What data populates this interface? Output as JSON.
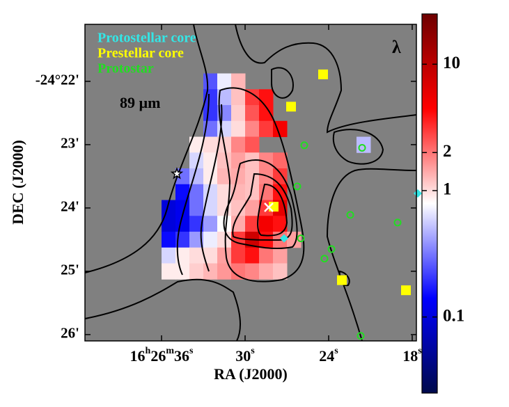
{
  "chart_data": {
    "type": "map",
    "band_label": "89 µm",
    "corner_label": "λ",
    "xlabel": "RA (J2000)",
    "ylabel": "DEC (J2000)",
    "xlim": [
      41.5,
      17.7
    ],
    "xticks": [
      36,
      30,
      24,
      18
    ],
    "xtick_prefix": [
      "16",
      "h",
      "26",
      "m"
    ],
    "xtick_suffix": "s",
    "ylim": [
      21.1,
      26.1
    ],
    "yticks": [
      {
        "value": 22,
        "label": "-24°22'"
      },
      {
        "value": 23,
        "label": "23'"
      },
      {
        "value": 24,
        "label": "24'"
      },
      {
        "value": 25,
        "label": "25'"
      },
      {
        "value": 26,
        "label": "26'"
      }
    ],
    "background": "#808080",
    "zlim": [
      0.025,
      25
    ],
    "zscale": "log",
    "zticks": [
      10,
      2,
      1,
      0.1
    ],
    "colormap": [
      "#000a4b",
      "#0000ff",
      "#ffffff",
      "#ff0000",
      "#6e0000"
    ],
    "map_rows": [
      {
        "dec": 22.0,
        "ra_from": 32.5,
        "values": [
          0.25,
          0.7,
          1.3
        ]
      },
      {
        "dec": 22.25,
        "ra_from": 32.5,
        "values": [
          0.2,
          0.5,
          1.2,
          3,
          4
        ]
      },
      {
        "dec": 22.5,
        "ra_from": 32.5,
        "values": [
          0.2,
          0.35,
          1.1,
          2.5,
          4
        ]
      },
      {
        "dec": 22.75,
        "ra_from": 32.5,
        "values": [
          0.3,
          0.6,
          1,
          1.8,
          3,
          5
        ]
      },
      {
        "dec": 23.0,
        "ra_from": 33.5,
        "values": [
          0.9,
          1.0,
          1.1,
          1.8,
          2.5
        ]
      },
      {
        "dec": 23.25,
        "ra_from": 33.5,
        "values": [
          0.6,
          0.9,
          1.2,
          1.5,
          1.2,
          1.8,
          2.2
        ]
      },
      {
        "dec": 23.5,
        "ra_from": 34.5,
        "values": [
          0.3,
          0.5,
          0.9,
          1.3,
          1.4,
          1.2,
          1.8,
          3
        ]
      },
      {
        "dec": 23.75,
        "ra_from": 34.5,
        "values": [
          0.15,
          0.3,
          0.6,
          1.0,
          1.3,
          1.2,
          2,
          4
        ]
      },
      {
        "dec": 24.0,
        "ra_from": 35.5,
        "values": [
          0.1,
          0.12,
          0.3,
          0.6,
          1.0,
          1.2,
          1.5,
          3,
          6
        ]
      },
      {
        "dec": 24.25,
        "ra_from": 35.5,
        "values": [
          0.1,
          0.12,
          0.2,
          0.4,
          0.8,
          1.4,
          3,
          5,
          4
        ]
      },
      {
        "dec": 24.5,
        "ra_from": 35.5,
        "values": [
          0.15,
          0.2,
          0.4,
          0.7,
          1.0,
          3,
          8,
          4,
          2,
          1.5
        ]
      },
      {
        "dec": 24.75,
        "ra_from": 35.5,
        "values": [
          0.6,
          0.9,
          1.0,
          1.0,
          1.5,
          3,
          4,
          2,
          1.5
        ]
      },
      {
        "dec": 25.0,
        "ra_from": 35.5,
        "values": [
          0.9,
          0.9,
          1.1,
          1.3,
          1.6,
          2,
          1.8,
          1.4,
          1.2
        ]
      },
      {
        "dec": 23.0,
        "ra_from": 21.5,
        "values": [
          0.5
        ]
      }
    ],
    "series": [
      {
        "name": "Protostellar core",
        "color": "#33e6e6",
        "marker": "diamond",
        "ra": [
          27.2,
          17.6
        ],
        "dec": [
          24.48,
          23.77
        ]
      },
      {
        "name": "Prestellar core",
        "color": "#ffff00",
        "marker": "square",
        "ra": [
          24.4,
          26.7,
          27.95,
          23.05,
          18.45
        ],
        "dec": [
          21.89,
          22.4,
          23.98,
          25.14,
          25.3
        ]
      },
      {
        "name": "Protostar",
        "color": "#22dd22",
        "marker": "circle",
        "ra": [
          25.75,
          21.6,
          26.25,
          22.45,
          19.05,
          26.0,
          23.8,
          24.3,
          21.7
        ],
        "dec": [
          23.01,
          23.05,
          23.66,
          24.11,
          24.23,
          24.48,
          24.65,
          24.8,
          26.02
        ]
      }
    ],
    "other_markers": [
      {
        "marker": "star",
        "color": "#ffffff",
        "ra": 34.9,
        "dec": 23.46
      },
      {
        "marker": "cross",
        "color": "#ffffff",
        "ra": 28.3,
        "dec": 23.99
      }
    ]
  }
}
